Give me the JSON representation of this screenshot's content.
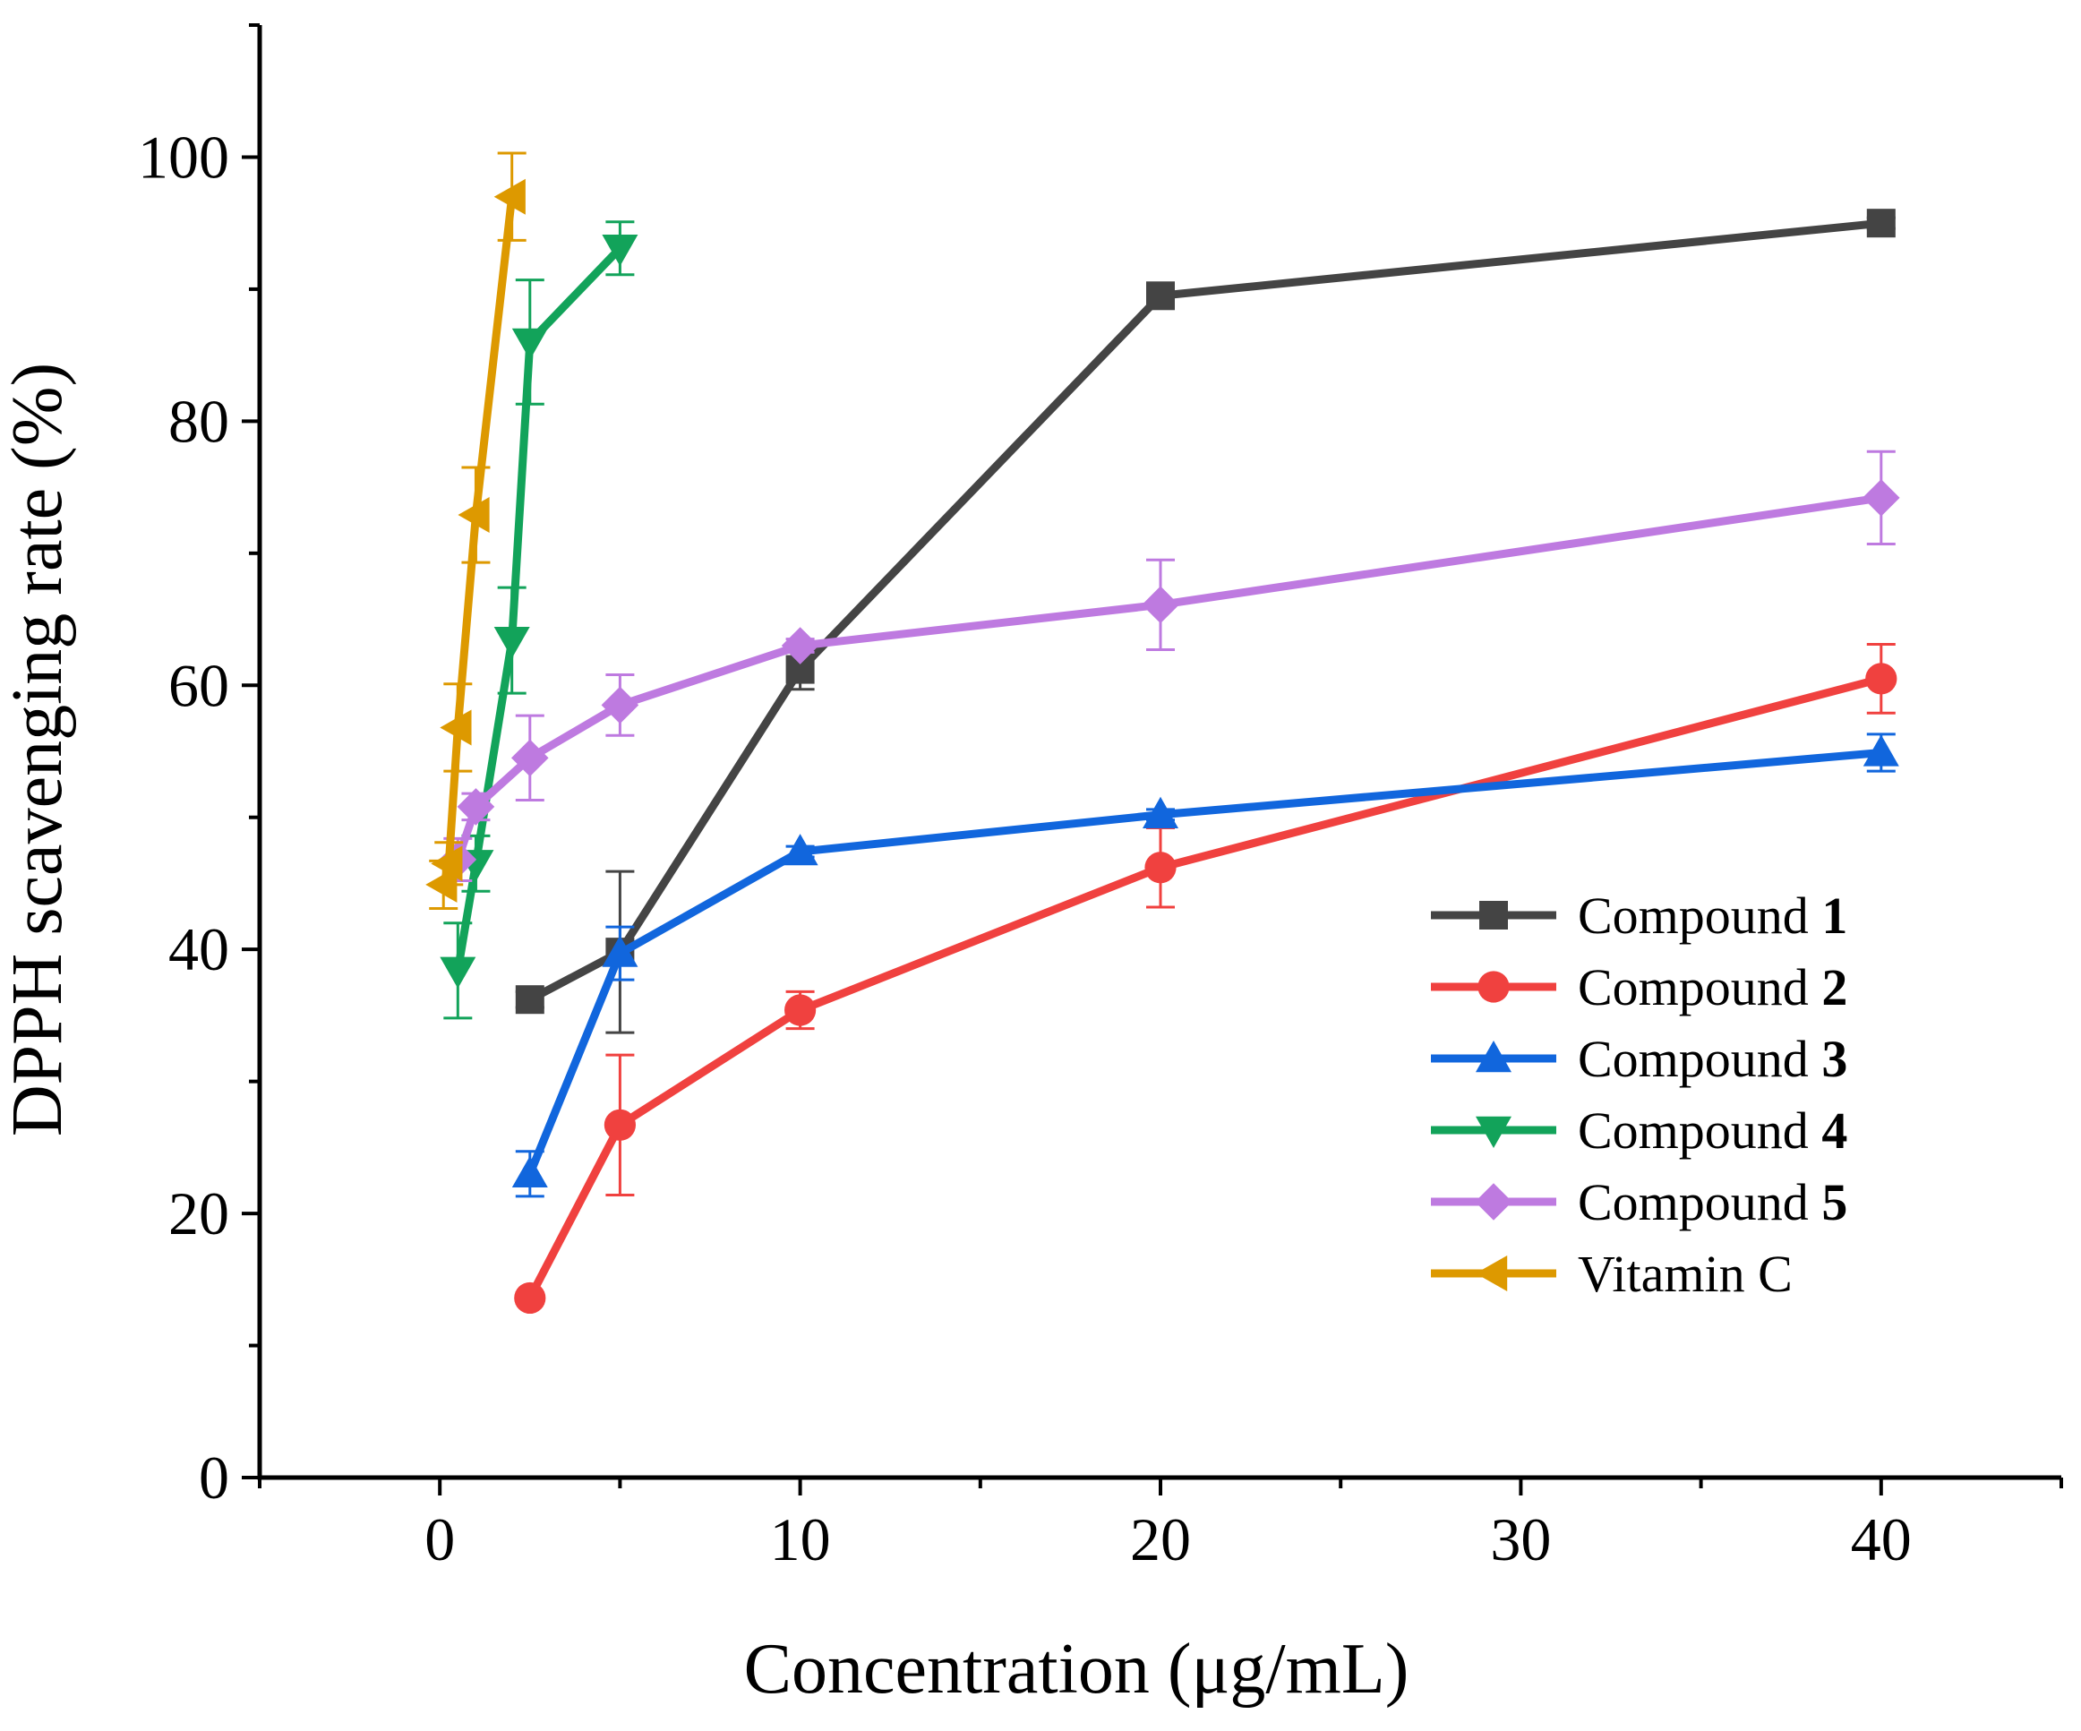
{
  "chart_data": {
    "type": "line",
    "title": "",
    "xlabel": "Concentration (μg/mL)",
    "ylabel": "DPPH scavenging rate (%)",
    "xlim": [
      -5,
      45
    ],
    "ylim": [
      0,
      110
    ],
    "x_ticks": [
      0,
      10,
      20,
      30,
      40
    ],
    "y_ticks": [
      0,
      20,
      40,
      60,
      80,
      100
    ],
    "x_minor_ticks": [
      -5,
      5,
      15,
      25,
      35,
      45
    ],
    "y_minor_ticks": [
      10,
      30,
      50,
      70,
      90,
      110
    ],
    "grid": false,
    "legend_position": "bottom-right",
    "series": [
      {
        "name": "Compound 1",
        "name_plain": "Compound ",
        "name_bold": "1",
        "color": "#444444",
        "marker": "square",
        "x": [
          2.5,
          5,
          10,
          20,
          40
        ],
        "y": [
          36.2,
          39.8,
          61.2,
          89.5,
          95.0
        ],
        "err": [
          0.6,
          6.1,
          1.5,
          0.4,
          0.4
        ]
      },
      {
        "name": "Compound 2",
        "name_plain": "Compound ",
        "name_bold": "2",
        "color": "#f0413f",
        "marker": "circle",
        "x": [
          2.5,
          5,
          10,
          20,
          40
        ],
        "y": [
          13.6,
          26.7,
          35.4,
          46.2,
          60.5
        ],
        "err": [
          0.4,
          5.3,
          1.4,
          3.0,
          2.6
        ]
      },
      {
        "name": "Compound 3",
        "name_plain": "Compound ",
        "name_bold": "3",
        "color": "#1166dd",
        "marker": "triangle-up",
        "x": [
          2.5,
          5,
          10,
          20,
          40
        ],
        "y": [
          23.0,
          39.7,
          47.4,
          50.2,
          54.9
        ],
        "err": [
          1.7,
          2.0,
          0.4,
          0.4,
          1.4
        ]
      },
      {
        "name": "Compound 4",
        "name_plain": "Compound ",
        "name_bold": "4",
        "color": "#12a35a",
        "marker": "triangle-down",
        "x": [
          0.5,
          1,
          2,
          2.5,
          5
        ],
        "y": [
          38.4,
          46.5,
          63.4,
          86.0,
          93.1
        ],
        "err": [
          3.6,
          2.1,
          4.0,
          4.7,
          2.0
        ]
      },
      {
        "name": "Compound 5",
        "name_plain": "Compound ",
        "name_bold": "5",
        "color": "#be7ae0",
        "marker": "diamond",
        "x": [
          0.5,
          1,
          2.5,
          5,
          10,
          20,
          40
        ],
        "y": [
          46.8,
          50.8,
          54.5,
          58.5,
          63.0,
          66.1,
          74.2
        ],
        "err": [
          1.6,
          1.0,
          3.2,
          2.3,
          0.5,
          3.4,
          3.5
        ]
      },
      {
        "name": "Vitamin C",
        "name_plain": "Vitamin C",
        "name_bold": "",
        "color": "#dd9900",
        "marker": "triangle-left",
        "x": [
          0.1,
          0.25,
          0.5,
          1,
          2
        ],
        "y": [
          44.9,
          46.5,
          56.8,
          72.9,
          97.0
        ],
        "err": [
          1.8,
          1.6,
          3.3,
          3.6,
          3.3
        ]
      }
    ]
  }
}
